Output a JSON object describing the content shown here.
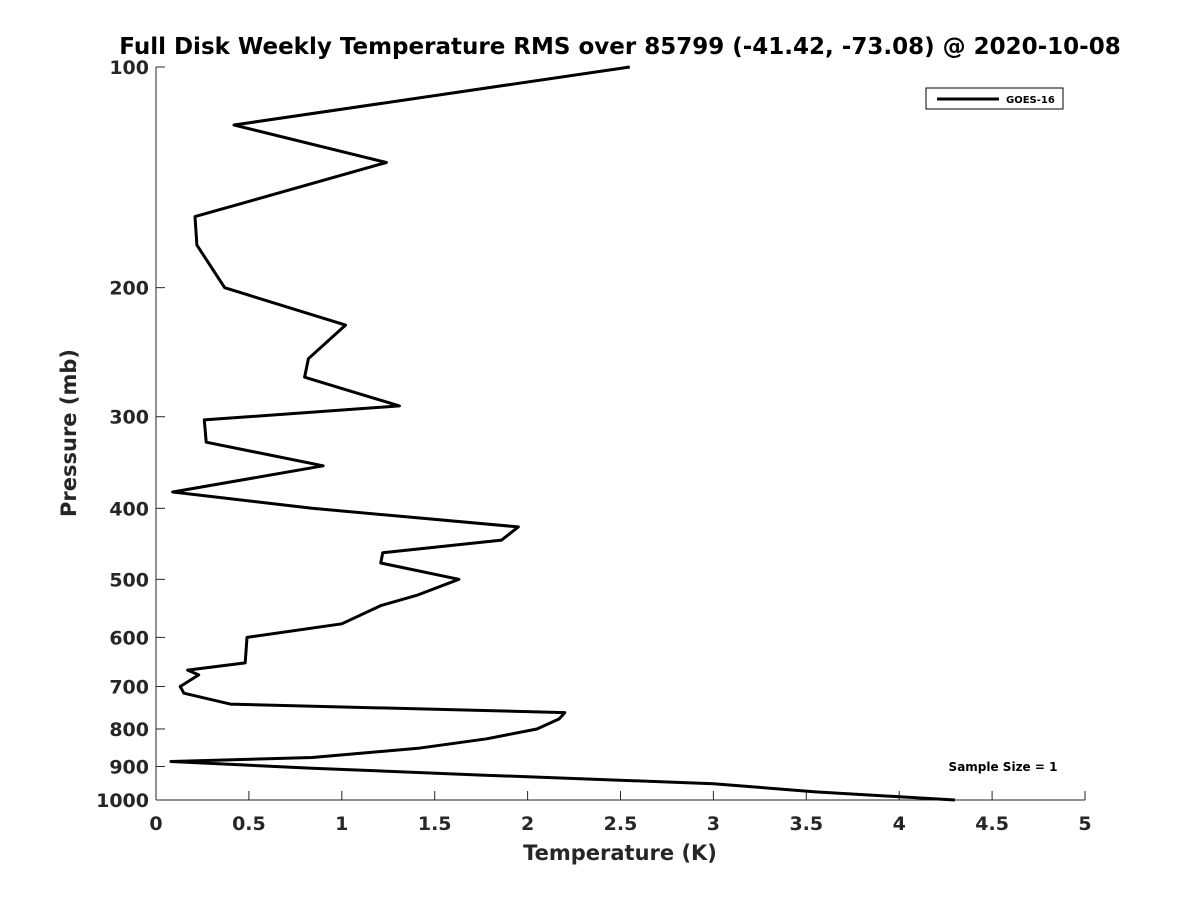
{
  "chart_data": {
    "type": "line",
    "title": "Full Disk Weekly Temperature RMS over 85799 (-41.42, -73.08) @ 2020-10-08",
    "xlabel": "Temperature (K)",
    "ylabel": "Pressure (mb)",
    "xlim": [
      0,
      5
    ],
    "ylim": [
      100,
      1000
    ],
    "y_scale": "log",
    "y_reversed": true,
    "x_ticks": [
      "0",
      "0.5",
      "1",
      "1.5",
      "2",
      "2.5",
      "3",
      "3.5",
      "4",
      "4.5",
      "5"
    ],
    "y_ticks": [
      "100",
      "200",
      "300",
      "400",
      "500",
      "600",
      "700",
      "800",
      "900",
      "1000"
    ],
    "grid": false,
    "legend_position": "top-right",
    "series": [
      {
        "name": "GOES-16",
        "color": "#000000",
        "points": [
          [
            2.55,
            100
          ],
          [
            0.42,
            120
          ],
          [
            1.24,
            135
          ],
          [
            0.21,
            160
          ],
          [
            0.22,
            175
          ],
          [
            0.37,
            200
          ],
          [
            1.02,
            225
          ],
          [
            0.82,
            250
          ],
          [
            0.8,
            265
          ],
          [
            1.31,
            290
          ],
          [
            0.26,
            303
          ],
          [
            0.27,
            325
          ],
          [
            0.9,
            350
          ],
          [
            0.09,
            380
          ],
          [
            0.84,
            400
          ],
          [
            1.95,
            424
          ],
          [
            1.86,
            442
          ],
          [
            1.22,
            460
          ],
          [
            1.21,
            475
          ],
          [
            1.63,
            500
          ],
          [
            1.41,
            525
          ],
          [
            1.21,
            543
          ],
          [
            1.0,
            575
          ],
          [
            0.49,
            600
          ],
          [
            0.48,
            650
          ],
          [
            0.17,
            665
          ],
          [
            0.23,
            675
          ],
          [
            0.13,
            700
          ],
          [
            0.15,
            715
          ],
          [
            0.4,
            740
          ],
          [
            2.2,
            760
          ],
          [
            2.17,
            775
          ],
          [
            2.05,
            800
          ],
          [
            1.78,
            825
          ],
          [
            1.41,
            850
          ],
          [
            0.84,
            875
          ],
          [
            0.08,
            886
          ],
          [
            0.84,
            905
          ],
          [
            1.77,
            925
          ],
          [
            3.0,
            950
          ],
          [
            3.55,
            975
          ],
          [
            4.3,
            1000
          ]
        ]
      }
    ],
    "annotations": [
      "Sample Size = 1"
    ]
  }
}
